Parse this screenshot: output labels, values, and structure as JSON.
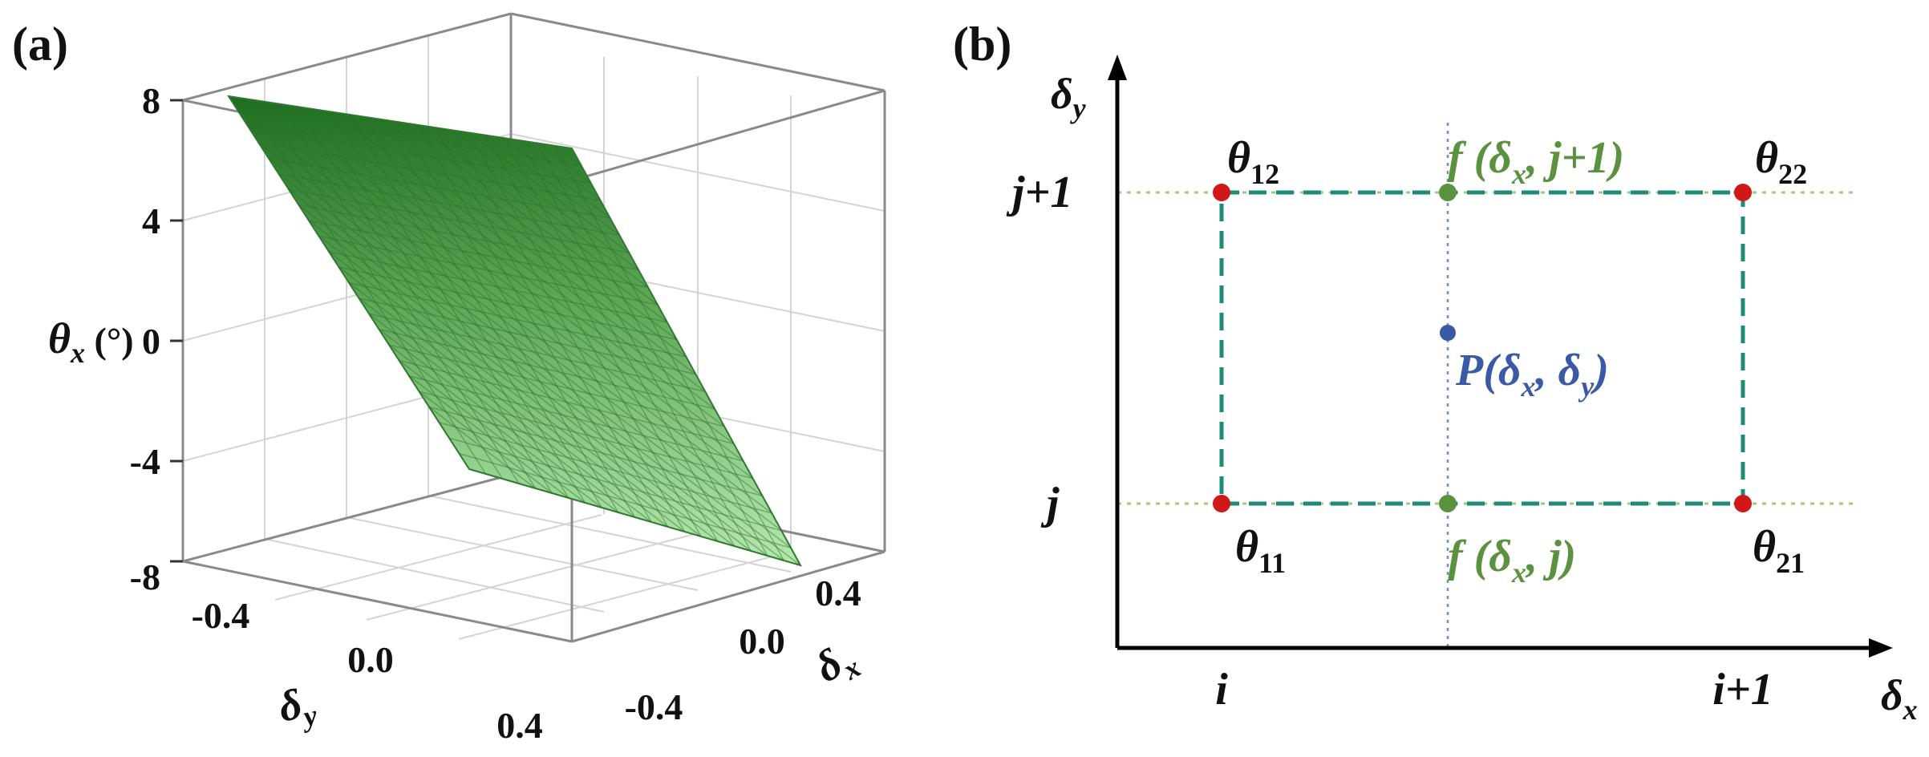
{
  "panel_a": {
    "label": "(a)",
    "z_axis": {
      "label_main": "θ",
      "label_sub": "x",
      "label_unit": " (°)",
      "ticks": [
        "8",
        "4",
        "0",
        "-4",
        "-8"
      ]
    },
    "y_axis": {
      "label_main": "δ",
      "label_sub": "y",
      "ticks": [
        "-0.4",
        "0.0",
        "0.4"
      ]
    },
    "x_axis": {
      "label_main": "δ",
      "label_sub": "x",
      "ticks": [
        "0.4",
        "0.0",
        "-0.4"
      ]
    },
    "surface_color_top": "#1f6e1f",
    "surface_color_bottom": "#b4e8ad"
  },
  "panel_b": {
    "label": "(b)",
    "x_axis": {
      "label_main": "δ",
      "label_sub": "x",
      "ticks": [
        "i",
        "i+1"
      ]
    },
    "y_axis": {
      "label_main": "δ",
      "label_sub": "y",
      "ticks": [
        "j+1",
        "j"
      ]
    },
    "corners": {
      "theta12": {
        "main": "θ",
        "sub": "12"
      },
      "theta22": {
        "main": "θ",
        "sub": "22"
      },
      "theta11": {
        "main": "θ",
        "sub": "11"
      },
      "theta21": {
        "main": "θ",
        "sub": "21"
      }
    },
    "interp_top": {
      "prefix": "f (δ",
      "sub": "x",
      "suffix": ", j+1)"
    },
    "interp_bottom": {
      "prefix": "f (δ",
      "sub": "x",
      "suffix": ", j)"
    },
    "point": {
      "prefix": "P(δ",
      "sub1": "x",
      "mid": ", δ",
      "sub2": "y",
      "suffix": ")"
    },
    "colors": {
      "corner": "#d01818",
      "interp": "#5a9240",
      "point": "#3a5aa8",
      "box": "#1f8a7a",
      "guide": "#9ccc78"
    }
  }
}
